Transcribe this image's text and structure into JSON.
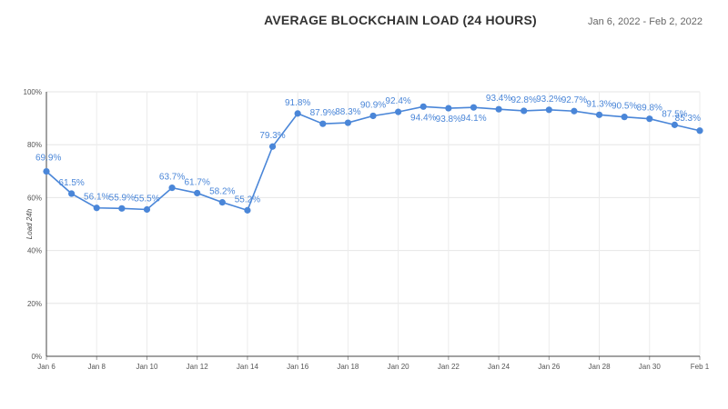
{
  "header": {
    "title": "AVERAGE BLOCKCHAIN LOAD (24 HOURS)",
    "date_range": "Jan 6, 2022 - Feb 2, 2022"
  },
  "chart_data": {
    "type": "line",
    "title": "AVERAGE BLOCKCHAIN LOAD (24 HOURS)",
    "xlabel": "",
    "ylabel": "Load 24h",
    "ylim": [
      0,
      100
    ],
    "y_ticks": [
      "0%",
      "20%",
      "40%",
      "60%",
      "80%",
      "100%"
    ],
    "x_tick_labels": [
      "Jan 6",
      "Jan 8",
      "Jan 10",
      "Jan 12",
      "Jan 14",
      "Jan 16",
      "Jan 18",
      "Jan 20",
      "Jan 22",
      "Jan 24",
      "Jan 26",
      "Jan 28",
      "Jan 30",
      "Feb 1"
    ],
    "x": [
      "Jan 6",
      "Jan 7",
      "Jan 8",
      "Jan 9",
      "Jan 10",
      "Jan 11",
      "Jan 12",
      "Jan 13",
      "Jan 14",
      "Jan 15",
      "Jan 16",
      "Jan 17",
      "Jan 18",
      "Jan 19",
      "Jan 20",
      "Jan 21",
      "Jan 22",
      "Jan 23",
      "Jan 24",
      "Jan 25",
      "Jan 26",
      "Jan 27",
      "Jan 28",
      "Jan 29",
      "Jan 30",
      "Jan 31",
      "Feb 1"
    ],
    "series": [
      {
        "values": [
          69.9,
          61.5,
          56.1,
          55.9,
          55.5,
          63.7,
          61.7,
          58.2,
          55.2,
          79.3,
          91.8,
          87.9,
          88.3,
          90.9,
          92.4,
          94.4,
          93.8,
          94.1,
          93.4,
          92.8,
          93.2,
          92.7,
          91.3,
          90.5,
          89.8,
          87.5,
          85.3
        ],
        "labels": [
          "69.9%",
          "61.5%",
          "56.1%",
          "55.9%",
          "55.5%",
          "63.7%",
          "61.7%",
          "58.2%",
          "55.2%",
          "79.3%",
          "91.8%",
          "87.9%",
          "88.3%",
          "90.9%",
          "92.4%",
          "94.4%",
          "93.8%",
          "94.1%",
          "93.4%",
          "92.8%",
          "93.2%",
          "92.7%",
          "91.3%",
          "90.5%",
          "89.8%",
          "87.5%",
          "85.3%"
        ],
        "color": "#4a86d8"
      }
    ],
    "grid": true,
    "legend": "none"
  }
}
